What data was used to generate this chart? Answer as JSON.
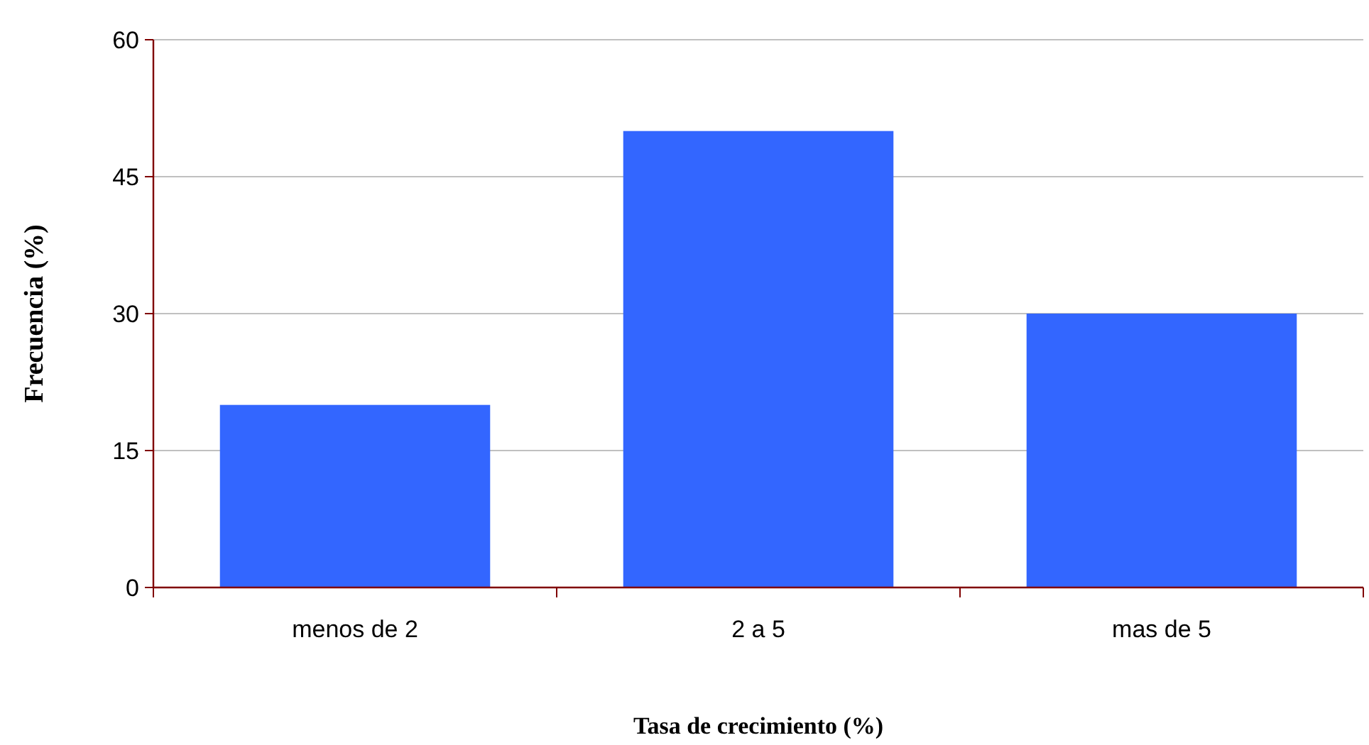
{
  "chart_data": {
    "type": "bar",
    "xlabel": "Tasa de crecimiento (%)",
    "ylabel": "Frecuencia (%)",
    "categories": [
      "menos de 2",
      "2 a 5",
      "mas de 5"
    ],
    "values": [
      20,
      50,
      30
    ],
    "color": "#3366ff",
    "ylim": [
      0,
      60
    ],
    "yticks": [
      0,
      15,
      30,
      45,
      60
    ],
    "grid": "y"
  }
}
